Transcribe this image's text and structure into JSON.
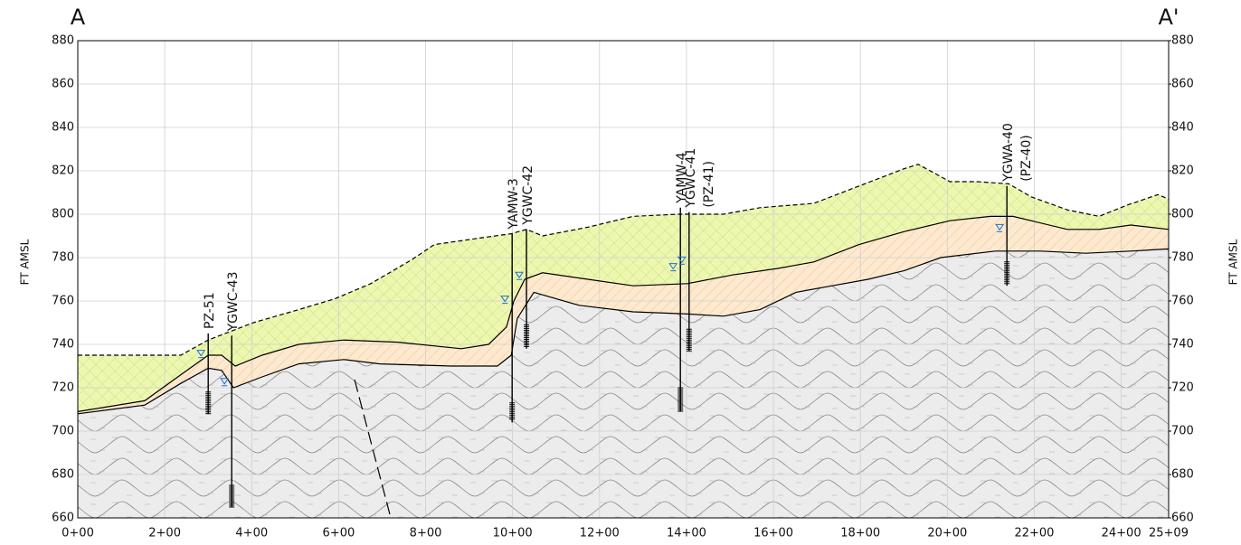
{
  "chart_data": {
    "type": "section",
    "title_left": "A",
    "title_right": "A'",
    "ylabel": "FT AMSL",
    "y2label": "FT AMSL",
    "xlim": [
      0,
      2509
    ],
    "xticks": [
      {
        "value": 0,
        "label": "0+00"
      },
      {
        "value": 200,
        "label": "2+00"
      },
      {
        "value": 400,
        "label": "4+00"
      },
      {
        "value": 600,
        "label": "6+00"
      },
      {
        "value": 800,
        "label": "8+00"
      },
      {
        "value": 1000,
        "label": "10+00"
      },
      {
        "value": 1200,
        "label": "12+00"
      },
      {
        "value": 1400,
        "label": "14+00"
      },
      {
        "value": 1600,
        "label": "16+00"
      },
      {
        "value": 1800,
        "label": "18+00"
      },
      {
        "value": 2000,
        "label": "20+00"
      },
      {
        "value": 2200,
        "label": "22+00"
      },
      {
        "value": 2400,
        "label": "24+00"
      },
      {
        "value": 2509,
        "label": "25+09"
      }
    ],
    "ylim": [
      660,
      880
    ],
    "yticks": [
      660,
      680,
      700,
      720,
      740,
      760,
      780,
      800,
      820,
      840,
      860,
      880
    ],
    "y2lim": [
      660,
      880
    ],
    "y2ticks": [
      660,
      680,
      700,
      720,
      740,
      760,
      780,
      800,
      820,
      840,
      860,
      880
    ],
    "grid": true,
    "series": [
      {
        "color": "#000000",
        "style": "dashed",
        "fill": "#eef7b0",
        "x": [
          0,
          237,
          300,
          404,
          508,
          591,
          674,
          768,
          820,
          924,
          997,
          1032,
          1069,
          1173,
          1277,
          1381,
          1485,
          1569,
          1693,
          1797,
          1901,
          1933,
          2006,
          2068,
          2141,
          2193,
          2276,
          2349,
          2411,
          2484,
          2509
        ],
        "values": [
          735,
          735,
          742,
          750,
          756,
          761,
          768,
          779,
          786,
          789,
          791,
          793,
          790,
          794,
          799,
          800,
          800,
          803,
          805,
          813,
          821,
          823,
          815,
          815,
          814,
          808,
          802,
          799,
          804,
          809,
          807
        ]
      },
      {
        "color": "#000000",
        "style": "solid",
        "fill": "#fde9cf",
        "x": [
          0,
          154,
          237,
          300,
          331,
          362,
          424,
          508,
          612,
          736,
          882,
          945,
          986,
          1003,
          1028,
          1069,
          1173,
          1277,
          1402,
          1506,
          1610,
          1693,
          1797,
          1901,
          2006,
          2099,
          2151,
          2276,
          2349,
          2422,
          2509
        ],
        "values": [
          709,
          714,
          726,
          735,
          735,
          730,
          735,
          740,
          742,
          741,
          738,
          740,
          748,
          760,
          770,
          773,
          770,
          767,
          768,
          772,
          775,
          778,
          786,
          792,
          797,
          799,
          799,
          793,
          793,
          795,
          793
        ]
      },
      {
        "color": "#000000",
        "style": "solid",
        "fill": "#ececec",
        "x": [
          0,
          154,
          237,
          300,
          331,
          358,
          424,
          508,
          612,
          695,
          861,
          965,
          997,
          1011,
          1049,
          1153,
          1277,
          1402,
          1485,
          1569,
          1652,
          1735,
          1818,
          1901,
          1985,
          2110,
          2214,
          2318,
          2422,
          2509
        ],
        "values": [
          708,
          712,
          722,
          729,
          728,
          720,
          725,
          731,
          733,
          731,
          730,
          730,
          735,
          752,
          764,
          758,
          755,
          754,
          753,
          756,
          764,
          767,
          770,
          774,
          780,
          783,
          783,
          782,
          783,
          784
        ]
      }
    ],
    "wells": [
      {
        "label": [
          "PZ-51"
        ],
        "x": 300,
        "top": 745,
        "bottom": 708,
        "screen": [
          718,
          708
        ],
        "water": 736
      },
      {
        "label": [
          "YGWC-43"
        ],
        "x": 354,
        "top": 744,
        "bottom": 665,
        "screen": [
          675,
          665
        ],
        "water": 723
      },
      {
        "label": [
          "YAMW-3"
        ],
        "x": 999,
        "top": 791,
        "bottom": 704,
        "screen": [
          713,
          705
        ],
        "water": 761
      },
      {
        "label": [
          "YGWC-42"
        ],
        "x": 1032,
        "top": 793,
        "bottom": 738,
        "screen": [
          749,
          739
        ],
        "water": 772
      },
      {
        "label": [
          "YAMW-4"
        ],
        "x": 1386,
        "top": 803,
        "bottom": 709,
        "screen": [
          720,
          709
        ],
        "water": 776
      },
      {
        "label": [
          "YGWC-41",
          "(PZ-41)"
        ],
        "x": 1406,
        "top": 801,
        "bottom": 737,
        "screen": [
          747,
          737
        ],
        "water": 779
      },
      {
        "label": [
          "YGWA-40",
          "(PZ-40)"
        ],
        "x": 2137,
        "top": 813,
        "bottom": 767,
        "screen": [
          778,
          768
        ],
        "water": 794
      }
    ]
  }
}
